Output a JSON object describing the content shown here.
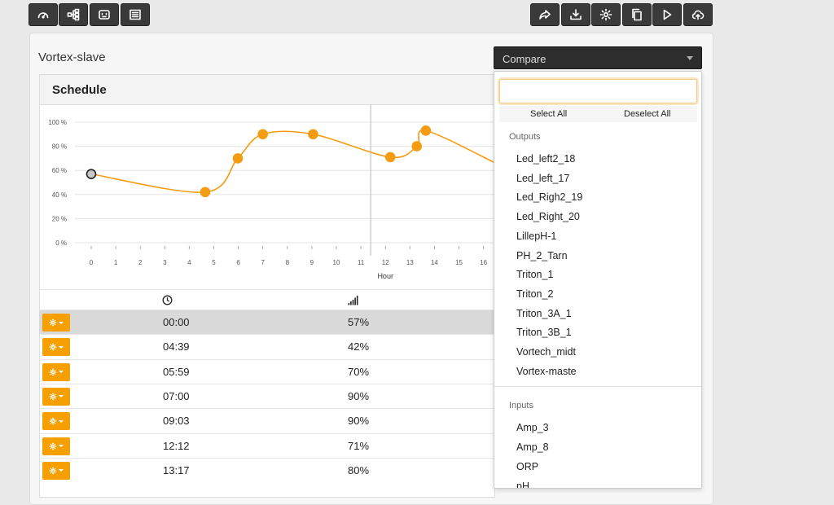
{
  "toolbar": {
    "left": [
      {
        "name": "dashboard-button",
        "icon": "gauge-icon"
      },
      {
        "name": "connectors-button",
        "icon": "sitemap-icon"
      },
      {
        "name": "outlets-button",
        "icon": "outlet-icon"
      },
      {
        "name": "list-button",
        "icon": "list-icon"
      }
    ],
    "right": [
      {
        "name": "share-button",
        "icon": "share-icon"
      },
      {
        "name": "download-button",
        "icon": "download-icon"
      },
      {
        "name": "settings-button",
        "icon": "gear-icon"
      },
      {
        "name": "copy-button",
        "icon": "copy-icon"
      },
      {
        "name": "play-button",
        "icon": "play-icon"
      },
      {
        "name": "upload-button",
        "icon": "cloud-upload-icon"
      }
    ]
  },
  "device_title": "Vortex-slave",
  "compare": {
    "label": "Compare"
  },
  "schedule": {
    "title": "Schedule"
  },
  "chart_data": {
    "type": "line",
    "xlabel": "Hour",
    "ylabel": "",
    "x_ticks": [
      0,
      1,
      2,
      3,
      4,
      5,
      6,
      7,
      8,
      9,
      10,
      11,
      12,
      13,
      14,
      15,
      16
    ],
    "y_ticks": [
      0,
      20,
      40,
      60,
      80,
      100
    ],
    "y_tick_suffix": " %",
    "ylim": [
      0,
      100
    ],
    "current_time_marker": 11.4,
    "points": [
      {
        "x": 0,
        "y": 57,
        "selected": true
      },
      {
        "x": 4.65,
        "y": 42
      },
      {
        "x": 5.98,
        "y": 70
      },
      {
        "x": 7.0,
        "y": 90
      },
      {
        "x": 9.05,
        "y": 90
      },
      {
        "x": 12.2,
        "y": 71
      },
      {
        "x": 13.28,
        "y": 80
      },
      {
        "x": 13.65,
        "y": 93
      }
    ],
    "line_continues_to": {
      "x": 16.5,
      "y": 66
    },
    "color": "#f39c12"
  },
  "table": {
    "header_icons": [
      "clock-icon",
      "signal-icon"
    ],
    "rows": [
      {
        "time": "00:00",
        "value": "57%",
        "selected": true
      },
      {
        "time": "04:39",
        "value": "42%"
      },
      {
        "time": "05:59",
        "value": "70%"
      },
      {
        "time": "07:00",
        "value": "90%"
      },
      {
        "time": "09:03",
        "value": "90%"
      },
      {
        "time": "12:12",
        "value": "71%"
      },
      {
        "time": "13:17",
        "value": "80%"
      }
    ]
  },
  "dropdown": {
    "search_value": "",
    "select_all": "Select All",
    "deselect_all": "Deselect All",
    "groups": [
      {
        "label": "Outputs",
        "items": [
          "Led_left2_18",
          "Led_left_17",
          "Led_Righ2_19",
          "Led_Right_20",
          "LillepH-1",
          "PH_2_Tarn",
          "Triton_1",
          "Triton_2",
          "Triton_3A_1",
          "Triton_3B_1",
          "Vortech_midt",
          "Vortex-maste"
        ]
      },
      {
        "label": "Inputs",
        "items": [
          "Amp_3",
          "Amp_8",
          "ORP",
          "pH"
        ]
      }
    ]
  },
  "colors": {
    "accent": "#f5a000",
    "toolbar_bg": "#3a3a3a",
    "selected_row": "#d9d9d9"
  }
}
